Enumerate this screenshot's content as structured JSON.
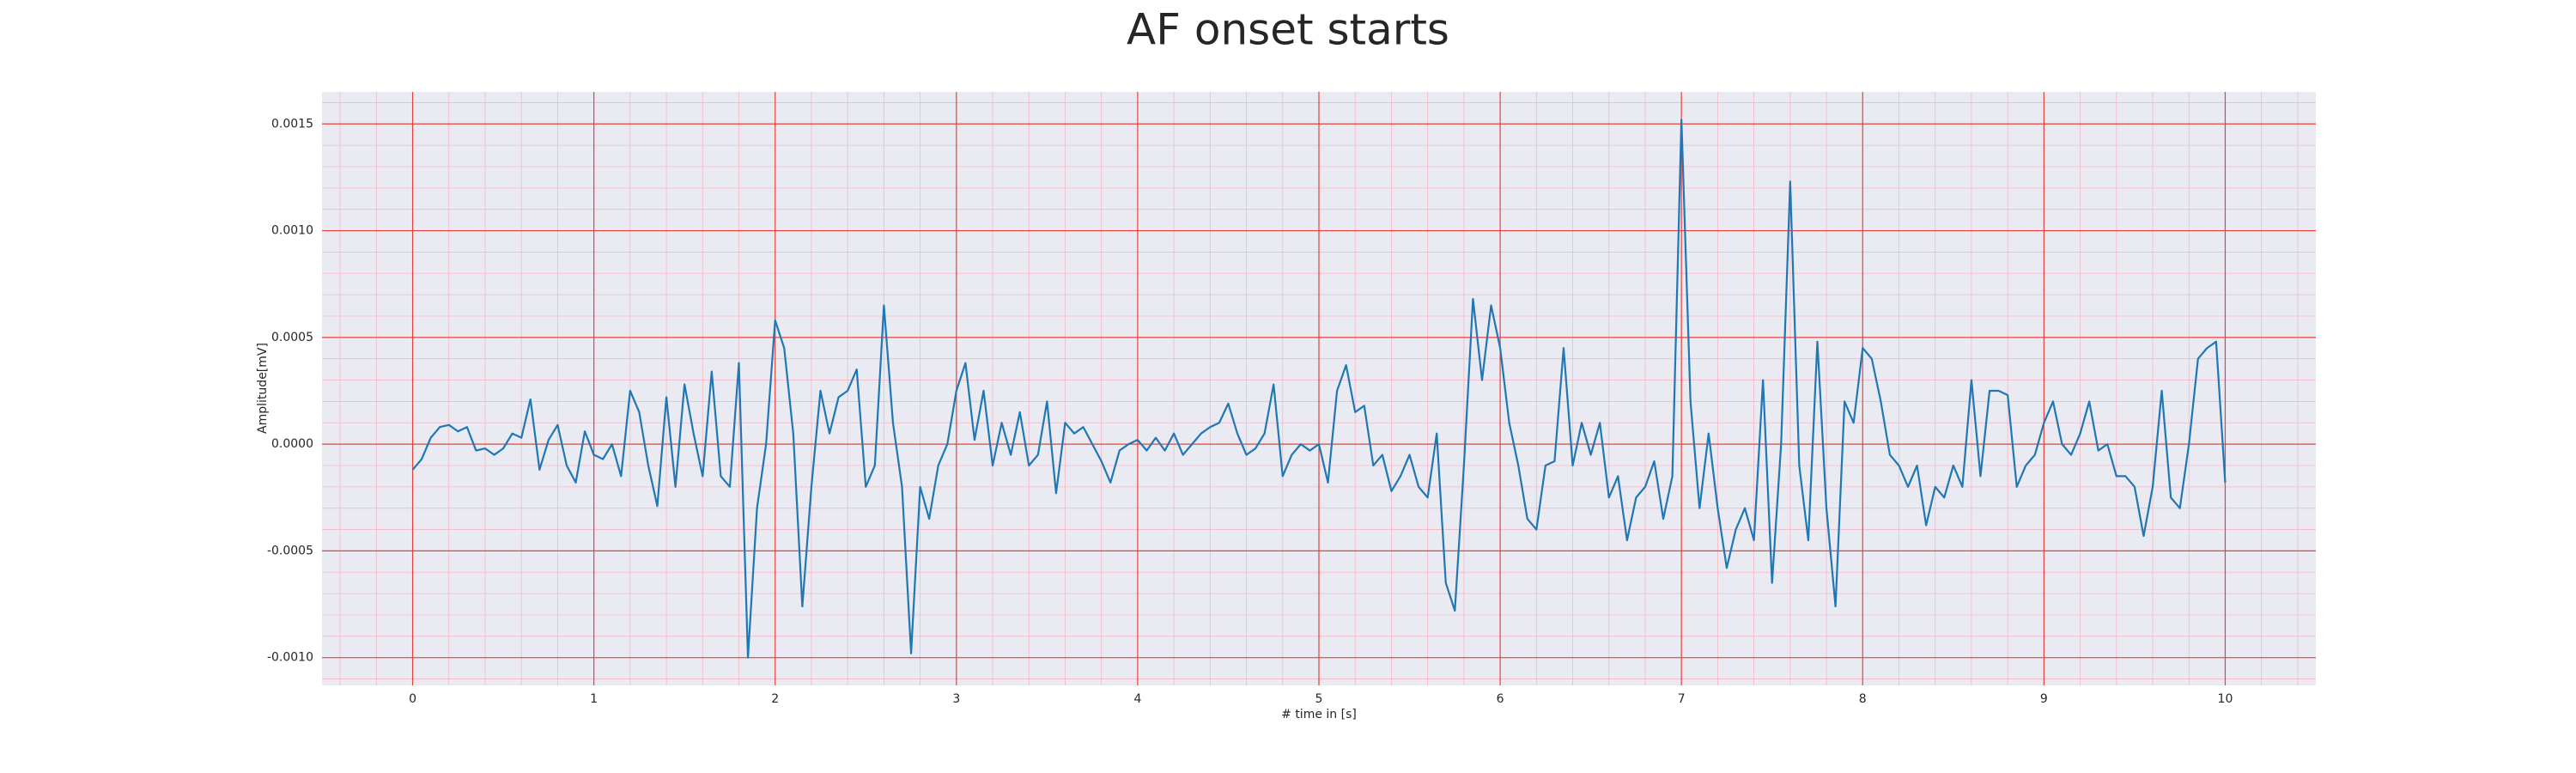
{
  "chart_data": {
    "type": "line",
    "title": "AF onset starts",
    "xlabel": "# time in [s]",
    "ylabel": "Amplitude[mV]",
    "x": [
      0,
      0.05,
      0.1,
      0.15,
      0.2,
      0.25,
      0.3,
      0.35,
      0.4,
      0.45,
      0.5,
      0.55,
      0.6,
      0.65,
      0.7,
      0.75,
      0.8,
      0.85,
      0.9,
      0.95,
      1,
      1.05,
      1.1,
      1.15,
      1.2,
      1.25,
      1.3,
      1.35,
      1.4,
      1.45,
      1.5,
      1.55,
      1.6,
      1.65,
      1.7,
      1.75,
      1.8,
      1.85,
      1.9,
      1.95,
      2,
      2.05,
      2.1,
      2.15,
      2.2,
      2.25,
      2.3,
      2.35,
      2.4,
      2.45,
      2.5,
      2.55,
      2.6,
      2.65,
      2.7,
      2.75,
      2.8,
      2.85,
      2.9,
      2.95,
      3,
      3.05,
      3.1,
      3.15,
      3.2,
      3.25,
      3.3,
      3.35,
      3.4,
      3.45,
      3.5,
      3.55,
      3.6,
      3.65,
      3.7,
      3.75,
      3.8,
      3.85,
      3.9,
      3.95,
      4,
      4.05,
      4.1,
      4.15,
      4.2,
      4.25,
      4.3,
      4.35,
      4.4,
      4.45,
      4.5,
      4.55,
      4.6,
      4.65,
      4.7,
      4.75,
      4.8,
      4.85,
      4.9,
      4.95,
      5,
      5.05,
      5.1,
      5.15,
      5.2,
      5.25,
      5.3,
      5.35,
      5.4,
      5.45,
      5.5,
      5.55,
      5.6,
      5.65,
      5.7,
      5.75,
      5.8,
      5.85,
      5.9,
      5.95,
      6,
      6.05,
      6.1,
      6.15,
      6.2,
      6.25,
      6.3,
      6.35,
      6.4,
      6.45,
      6.5,
      6.55,
      6.6,
      6.65,
      6.7,
      6.75,
      6.8,
      6.85,
      6.9,
      6.95,
      7,
      7.05,
      7.1,
      7.15,
      7.2,
      7.25,
      7.3,
      7.35,
      7.4,
      7.45,
      7.5,
      7.55,
      7.6,
      7.65,
      7.7,
      7.75,
      7.8,
      7.85,
      7.9,
      7.95,
      8,
      8.05,
      8.1,
      8.15,
      8.2,
      8.25,
      8.3,
      8.35,
      8.4,
      8.45,
      8.5,
      8.55,
      8.6,
      8.65,
      8.7,
      8.75,
      8.8,
      8.85,
      8.9,
      8.95,
      9,
      9.05,
      9.1,
      9.15,
      9.2,
      9.25,
      9.3,
      9.35,
      9.4,
      9.45,
      9.5,
      9.55,
      9.6,
      9.65,
      9.7,
      9.75,
      9.8,
      9.85,
      9.9,
      9.95,
      10
    ],
    "series": [
      {
        "color": "#1f77b4",
        "values": [
          -0.00012,
          -7e-05,
          3e-05,
          8e-05,
          9e-05,
          6e-05,
          8e-05,
          -3e-05,
          -2e-05,
          -5e-05,
          -2e-05,
          5e-05,
          3e-05,
          0.00021,
          -0.00012,
          2e-05,
          9e-05,
          -0.0001,
          -0.00018,
          6e-05,
          -5e-05,
          -7e-05,
          0,
          -0.00015,
          0.00025,
          0.00015,
          -0.0001,
          -0.00029,
          0.00022,
          -0.0002,
          0.00028,
          5e-05,
          -0.00015,
          0.00034,
          -0.00015,
          -0.0002,
          0.00038,
          -0.001,
          -0.0003,
          0,
          0.00058,
          0.00045,
          5e-05,
          -0.00076,
          -0.0002,
          0.00025,
          5e-05,
          0.00022,
          0.00025,
          0.00035,
          -0.0002,
          -0.0001,
          0.00065,
          0.0001,
          -0.0002,
          -0.00098,
          -0.0002,
          -0.00035,
          -0.0001,
          0,
          0.00025,
          0.00038,
          2e-05,
          0.00025,
          -0.0001,
          0.0001,
          -5e-05,
          0.00015,
          -0.0001,
          -5e-05,
          0.0002,
          -0.00023,
          0.0001,
          5e-05,
          8e-05,
          0,
          -8e-05,
          -0.00018,
          -3e-05,
          0,
          2e-05,
          -3e-05,
          3e-05,
          -3e-05,
          5e-05,
          -5e-05,
          0,
          5e-05,
          8e-05,
          0.0001,
          0.00019,
          5e-05,
          -5e-05,
          -2e-05,
          5e-05,
          0.00028,
          -0.00015,
          -5e-05,
          0,
          -3e-05,
          0,
          -0.00018,
          0.00025,
          0.00037,
          0.00015,
          0.00018,
          -0.0001,
          -5e-05,
          -0.00022,
          -0.00015,
          -5e-05,
          -0.0002,
          -0.00025,
          5e-05,
          -0.00065,
          -0.00078,
          -0.0001,
          0.00068,
          0.0003,
          0.00065,
          0.00045,
          0.0001,
          -0.0001,
          -0.00035,
          -0.0004,
          -0.0001,
          -8e-05,
          0.00045,
          -0.0001,
          0.0001,
          -5e-05,
          0.0001,
          -0.00025,
          -0.00015,
          -0.00045,
          -0.00025,
          -0.0002,
          -8e-05,
          -0.00035,
          -0.00015,
          0.00152,
          0.0002,
          -0.0003,
          5e-05,
          -0.0003,
          -0.00058,
          -0.0004,
          -0.0003,
          -0.00045,
          0.0003,
          -0.00065,
          0,
          0.00123,
          -0.0001,
          -0.00045,
          0.00048,
          -0.0003,
          -0.00076,
          0.0002,
          0.0001,
          0.00045,
          0.0004,
          0.0002,
          -5e-05,
          -0.0001,
          -0.0002,
          -0.0001,
          -0.00038,
          -0.0002,
          -0.00025,
          -0.0001,
          -0.0002,
          0.0003,
          -0.00015,
          0.00025,
          0.00025,
          0.00023,
          -0.0002,
          -0.0001,
          -5e-05,
          0.0001,
          0.0002,
          0,
          -5e-05,
          5e-05,
          0.0002,
          -3e-05,
          0,
          -0.00015,
          -0.00015,
          -0.0002,
          -0.00043,
          -0.0002,
          0.00025,
          -0.00025,
          -0.0003,
          0,
          0.0004,
          0.00045,
          0.00048,
          -0.00018
        ]
      }
    ],
    "xlim": [
      -0.5,
      10.5
    ],
    "xticks": [
      0,
      1,
      2,
      3,
      4,
      5,
      6,
      7,
      8,
      9,
      10
    ],
    "ylim": [
      -0.00113,
      0.00165
    ],
    "yticks": [
      {
        "value": -0.001,
        "label": "-0.0010"
      },
      -0.0005,
      {
        "value": 0,
        "label": "0.0000"
      },
      0.0005,
      {
        "value": 0.001,
        "label": "0.0010"
      },
      0.0015
    ],
    "grid": true,
    "minor_grid": true
  }
}
